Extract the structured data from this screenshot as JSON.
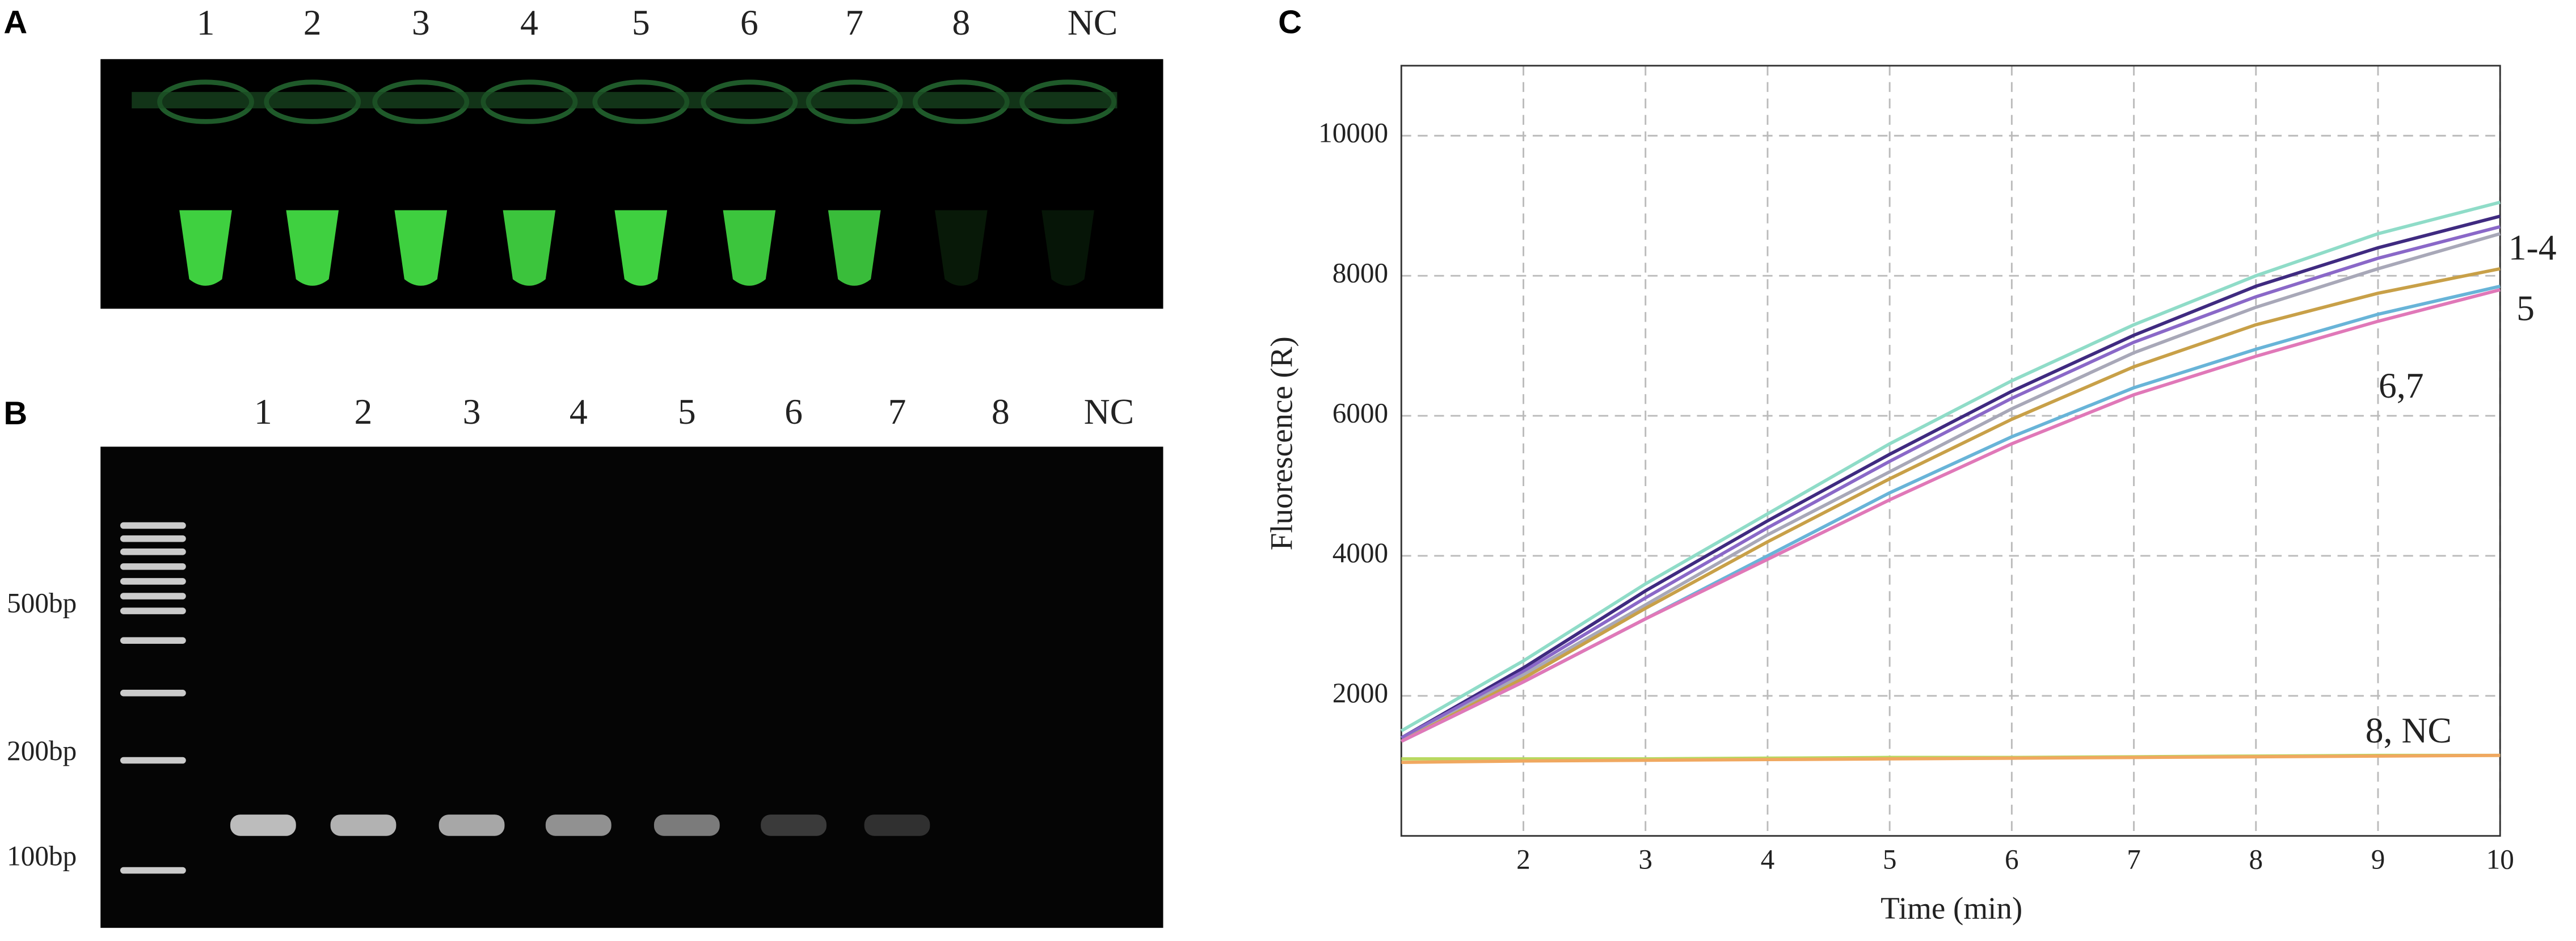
{
  "panels": {
    "a": {
      "label": "A",
      "lanes": [
        "1",
        "2",
        "3",
        "4",
        "5",
        "6",
        "7",
        "8",
        "NC"
      ]
    },
    "b": {
      "label": "B",
      "lanes": [
        "1",
        "2",
        "3",
        "4",
        "5",
        "6",
        "7",
        "8",
        "NC"
      ],
      "ladder": [
        "500bp",
        "200bp",
        "100bp"
      ]
    },
    "c": {
      "label": "C"
    }
  },
  "chart_data": {
    "type": "line",
    "x_label": "Time (min)",
    "y_label": "Fluorescence (R)",
    "x": [
      1,
      2,
      3,
      4,
      5,
      6,
      7,
      8,
      9,
      10
    ],
    "xlim": [
      1,
      10
    ],
    "xticks": [
      2,
      3,
      4,
      5,
      6,
      7,
      8,
      9,
      10
    ],
    "ylim": [
      0,
      11000
    ],
    "yticks": [
      2000,
      4000,
      6000,
      8000,
      10000
    ],
    "grid": true,
    "series": [
      {
        "color": "#8fdcc8",
        "values": [
          1500,
          2500,
          3600,
          4600,
          5600,
          6500,
          7300,
          8000,
          8600,
          9050
        ]
      },
      {
        "color": "#3f2a80",
        "values": [
          1400,
          2400,
          3500,
          4500,
          5450,
          6350,
          7150,
          7850,
          8400,
          8850
        ]
      },
      {
        "color": "#8a68c8",
        "values": [
          1400,
          2350,
          3400,
          4400,
          5350,
          6250,
          7050,
          7700,
          8250,
          8700
        ]
      },
      {
        "color": "#a8a8b8",
        "values": [
          1350,
          2300,
          3300,
          4300,
          5200,
          6100,
          6900,
          7550,
          8100,
          8600
        ]
      },
      {
        "color": "#c8a048",
        "values": [
          1350,
          2250,
          3250,
          4200,
          5100,
          5950,
          6700,
          7300,
          7750,
          8100
        ]
      },
      {
        "color": "#68b4d8",
        "values": [
          1350,
          2200,
          3100,
          4000,
          4900,
          5700,
          6400,
          6950,
          7450,
          7850
        ]
      },
      {
        "color": "#e078b8",
        "values": [
          1350,
          2200,
          3100,
          3950,
          4800,
          5600,
          6300,
          6850,
          7350,
          7800
        ]
      },
      {
        "color": "#b8d860",
        "values": [
          1100,
          1100,
          1100,
          1110,
          1120,
          1120,
          1130,
          1140,
          1150,
          1150
        ]
      },
      {
        "color": "#f0a860",
        "values": [
          1050,
          1070,
          1080,
          1090,
          1100,
          1110,
          1120,
          1130,
          1140,
          1150
        ]
      }
    ],
    "annotations": [
      "1-4",
      "5",
      "6,7",
      "8, NC"
    ]
  }
}
